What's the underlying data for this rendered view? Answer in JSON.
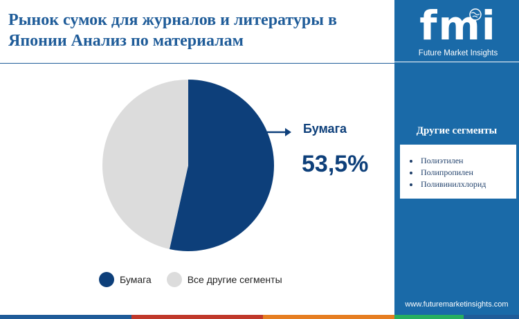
{
  "header": {
    "title": "Рынок сумок для журналов и литературы в Японии Анализ  по материалам"
  },
  "chart_data": {
    "type": "pie",
    "slices": [
      {
        "label": "Бумага",
        "value": 53.5,
        "color": "#0d3f7a"
      },
      {
        "label": "Все другие сегменты",
        "value": 46.5,
        "color": "#dcdcdc"
      }
    ],
    "callout": {
      "label": "Бумага",
      "value": "53,5%"
    },
    "legend_position": "bottom"
  },
  "sidebar": {
    "logo_text": "fmi",
    "logo_subtitle": "Future Market Insights",
    "segments_heading": "Другие сегменты",
    "segments": [
      "Полиэтилен",
      "Полипропилен",
      "Поливинилхлорид"
    ],
    "website": "www.futuremarketinsights.com",
    "background_color": "#1a6aa8"
  },
  "footer": {
    "stripe_colors": [
      "#1f5c99",
      "#c0392b",
      "#e67e22",
      "#27ae60",
      "#1f5c99"
    ]
  }
}
